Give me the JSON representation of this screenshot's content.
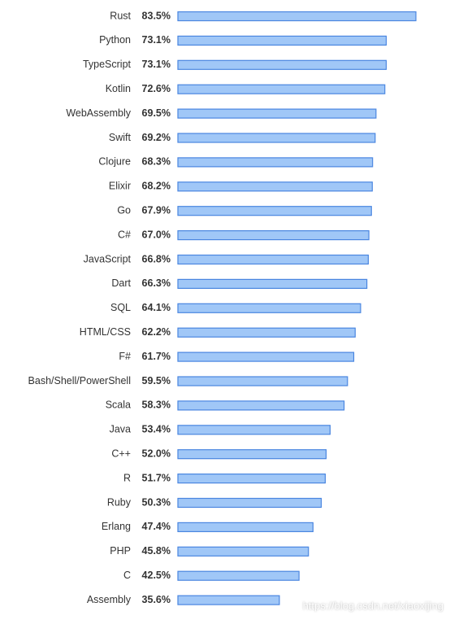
{
  "chart_data": {
    "type": "bar",
    "orientation": "horizontal",
    "categories": [
      "Rust",
      "Python",
      "TypeScript",
      "Kotlin",
      "WebAssembly",
      "Swift",
      "Clojure",
      "Elixir",
      "Go",
      "C#",
      "JavaScript",
      "Dart",
      "SQL",
      "HTML/CSS",
      "F#",
      "Bash/Shell/PowerShell",
      "Scala",
      "Java",
      "C++",
      "R",
      "Ruby",
      "Erlang",
      "PHP",
      "C",
      "Assembly"
    ],
    "values": [
      83.5,
      73.1,
      73.1,
      72.6,
      69.5,
      69.2,
      68.3,
      68.2,
      67.9,
      67.0,
      66.8,
      66.3,
      64.1,
      62.2,
      61.7,
      59.5,
      58.3,
      53.4,
      52.0,
      51.7,
      50.3,
      47.4,
      45.8,
      42.5,
      35.6
    ],
    "value_labels": [
      "83.5%",
      "73.1%",
      "73.1%",
      "72.6%",
      "69.5%",
      "69.2%",
      "68.3%",
      "68.2%",
      "67.9%",
      "67.0%",
      "66.8%",
      "66.3%",
      "64.1%",
      "62.2%",
      "61.7%",
      "59.5%",
      "58.3%",
      "53.4%",
      "52.0%",
      "51.7%",
      "50.3%",
      "47.4%",
      "45.8%",
      "42.5%",
      "35.6%"
    ],
    "unit": "%",
    "title": "",
    "xlabel": "",
    "ylabel": "",
    "xlim": [
      0,
      83.5
    ],
    "grid": false,
    "colors": {
      "bar_fill": "#a0c7f7",
      "bar_stroke": "#4a86e0",
      "text": "#333333"
    }
  },
  "watermark": "https://blog.csdn.net/xiaoxijing"
}
